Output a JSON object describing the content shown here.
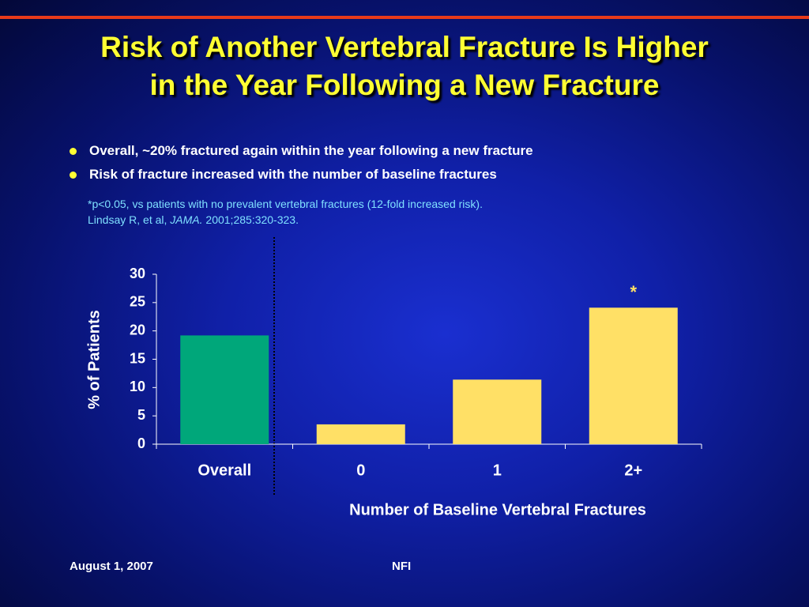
{
  "header": {
    "title_lines": [
      "Risk of Another Vertebral Fracture Is Higher",
      "in the Year Following a New Fracture"
    ]
  },
  "bullets": [
    "Overall, ~20% fractured again within the year following a new fracture",
    "Risk of fracture increased with the number of baseline fractures"
  ],
  "footnote": {
    "note": "*p<0.05, vs patients with no prevalent vertebral fractures (12-fold increased risk).",
    "authors": "Lindsay R, et al,",
    "journal": "JAMA.",
    "citation": "2001;285:320-323."
  },
  "chart_data": {
    "type": "bar",
    "categories": [
      "Overall",
      "0",
      "1",
      "2+"
    ],
    "values": [
      19.2,
      3.5,
      11.4,
      24.1
    ],
    "colors": [
      "#00a77a",
      "#ffe066",
      "#ffe066",
      "#ffe066"
    ],
    "ylim": [
      0,
      30
    ],
    "yticks": [
      0,
      5,
      10,
      15,
      20,
      25,
      30
    ],
    "y_label": "% of Patients",
    "x_label": "Number of Baseline Vertebral Fractures",
    "annotation": "*"
  },
  "footer": {
    "date": "August 1, 2007",
    "source": "NFI"
  }
}
